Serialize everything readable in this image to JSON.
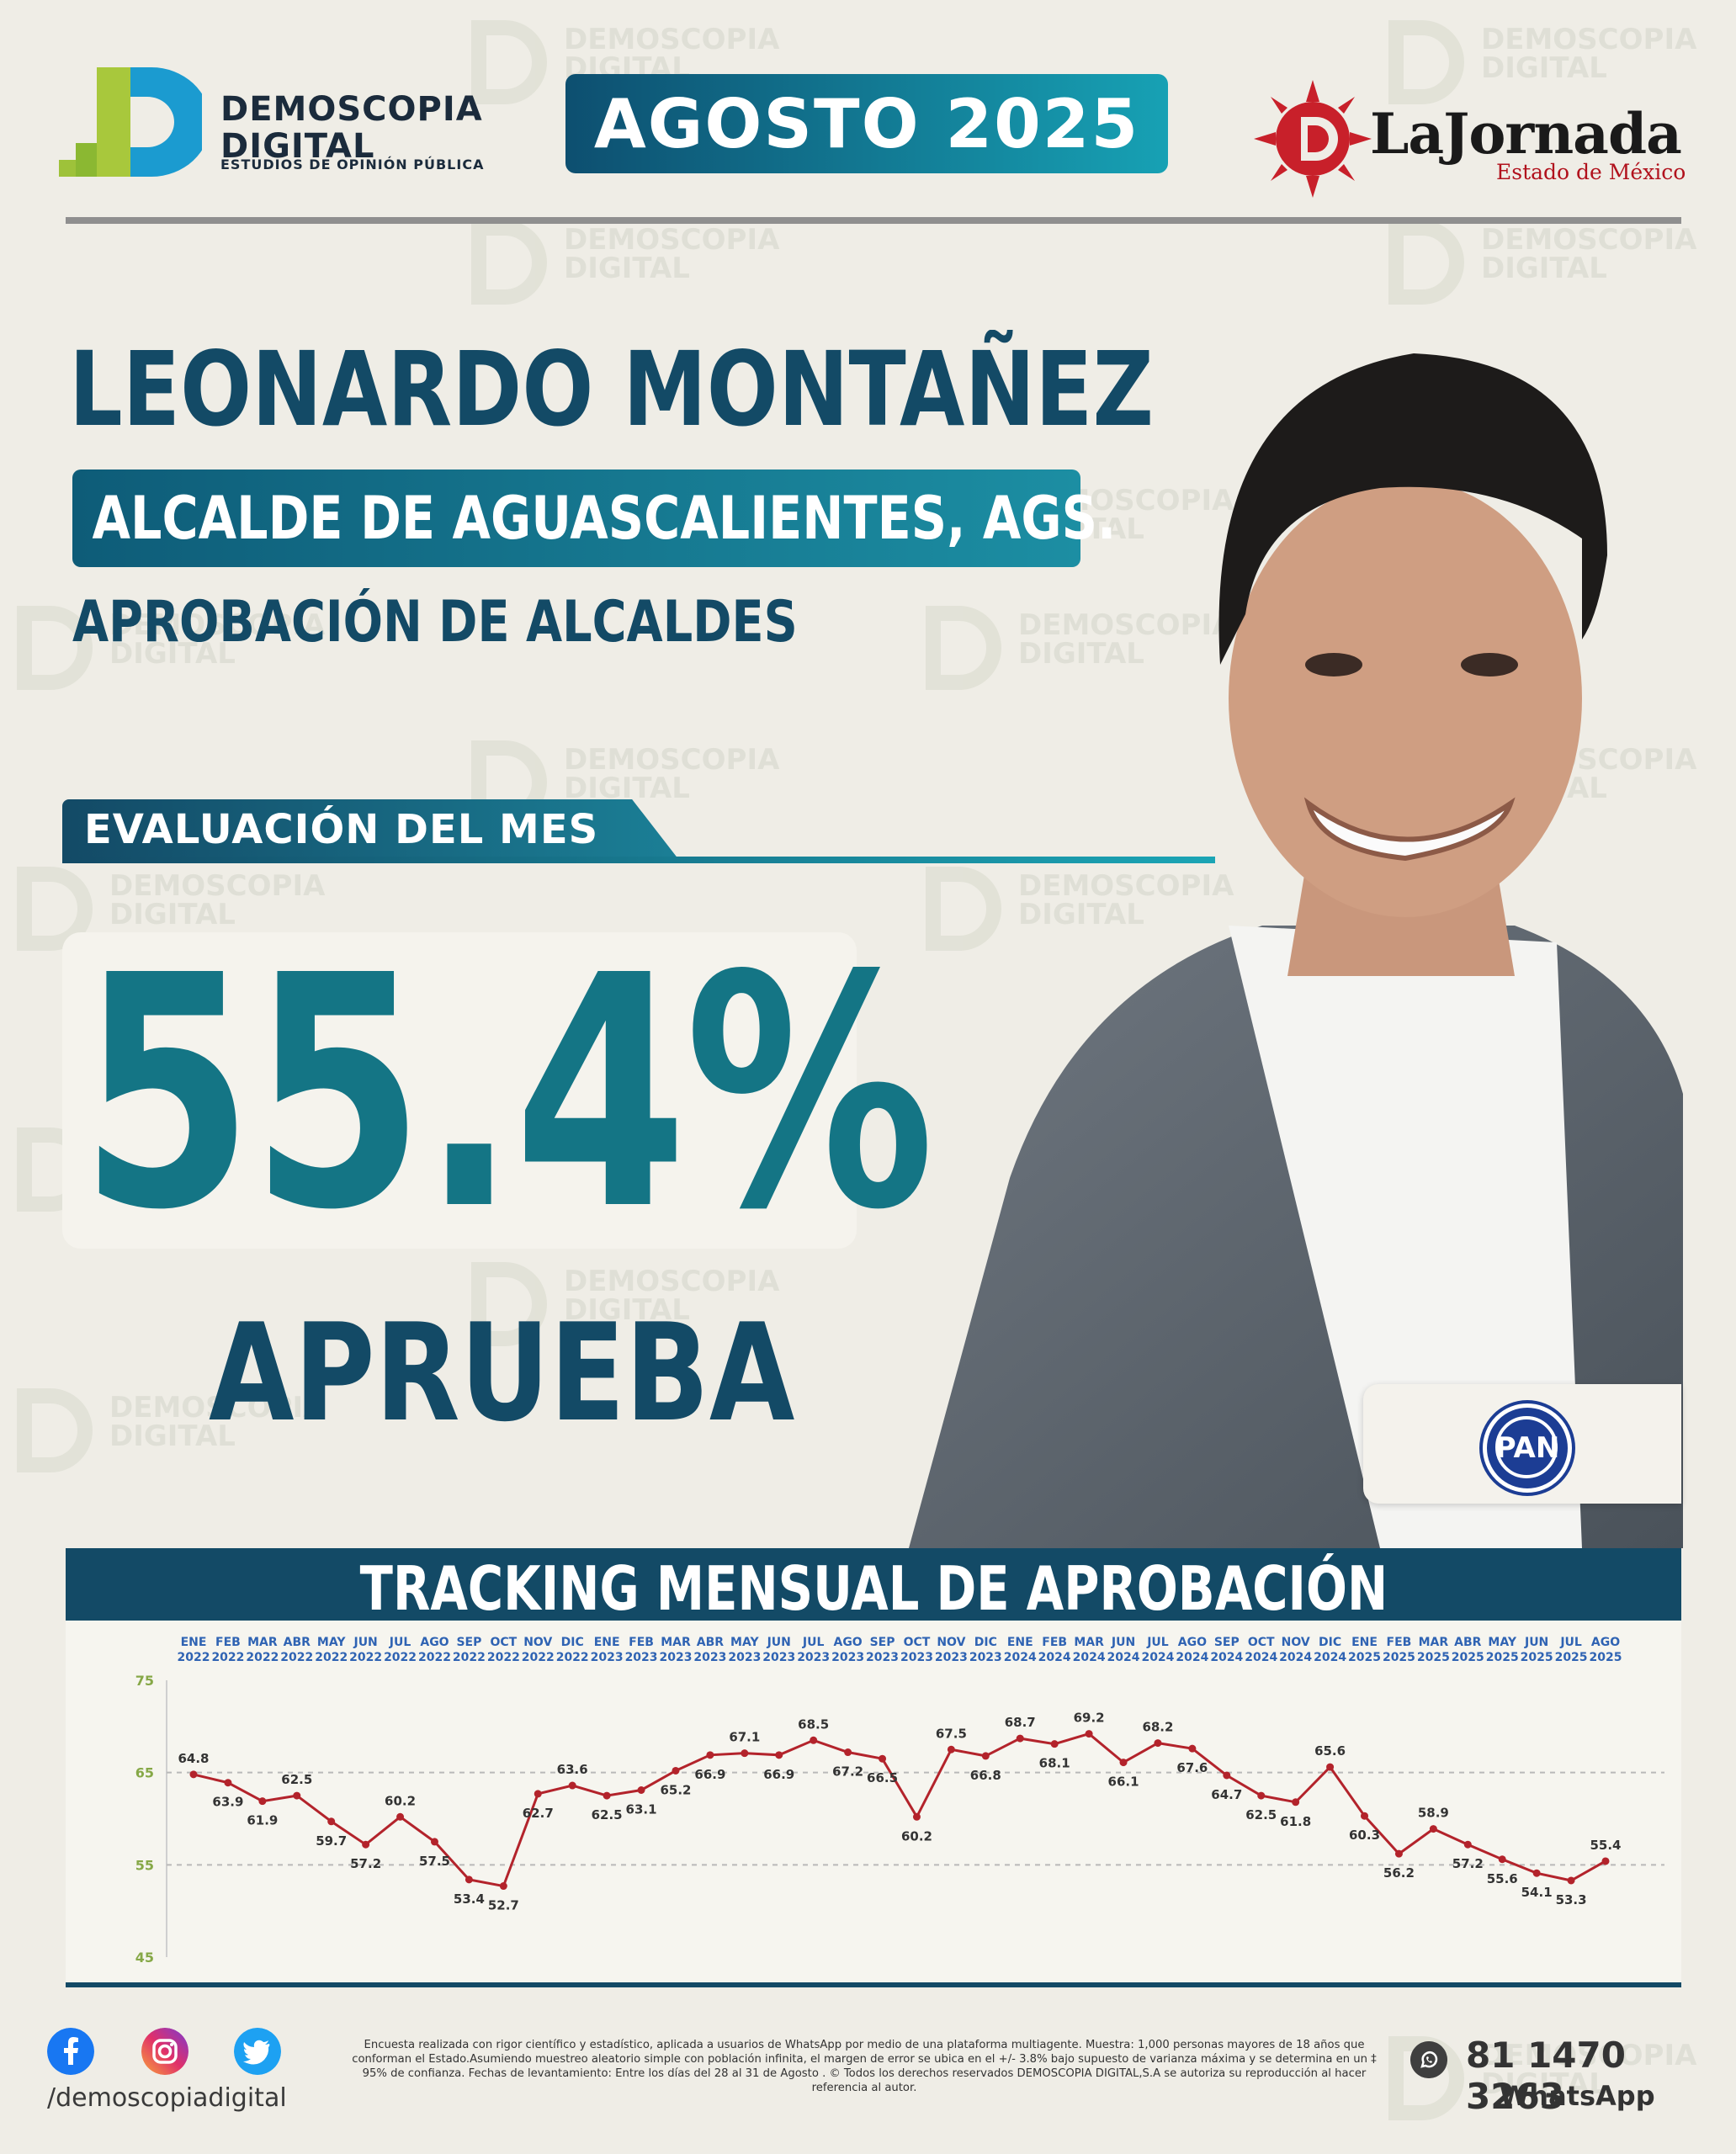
{
  "brand": {
    "name_line1": "DEMOSCOPIA",
    "name_line2": "DIGITAL",
    "subtitle": "ESTUDIOS DE OPINIÓN PÚBLICA"
  },
  "period": "AGOSTO 2025",
  "media": {
    "name": "LaJornada",
    "region": "Estado de México"
  },
  "person": {
    "name": "LEONARDO MONTAÑEZ",
    "office": "ALCALDE DE AGUASCALIENTES, AGS.",
    "category": "APROBACIÓN DE ALCALDES"
  },
  "evaluation": {
    "label": "EVALUACIÓN DEL MES",
    "value": "55.4%",
    "value_label": "APRUEBA"
  },
  "party": {
    "name": "PAN"
  },
  "chart_data": {
    "type": "line",
    "title": "TRACKING MENSUAL DE APROBACIÓN",
    "xlabel": "",
    "ylabel": "",
    "ylim": [
      45,
      75
    ],
    "yticks": [
      75,
      65,
      55,
      45
    ],
    "grid": true,
    "x_month": [
      "ENE",
      "FEB",
      "MAR",
      "ABR",
      "MAY",
      "JUN",
      "JUL",
      "AGO",
      "SEP",
      "OCT",
      "NOV",
      "DIC",
      "ENE",
      "FEB",
      "MAR",
      "ABR",
      "MAY",
      "JUN",
      "JUL",
      "AGO",
      "SEP",
      "OCT",
      "NOV",
      "DIC",
      "ENE",
      "FEB",
      "MAR",
      "JUN",
      "JUL",
      "AGO",
      "SEP",
      "OCT",
      "NOV",
      "DIC",
      "ENE",
      "FEB",
      "MAR",
      "ABR",
      "MAY",
      "JUN",
      "JUL",
      "AGO"
    ],
    "x_year": [
      "2022",
      "2022",
      "2022",
      "2022",
      "2022",
      "2022",
      "2022",
      "2022",
      "2022",
      "2022",
      "2022",
      "2022",
      "2023",
      "2023",
      "2023",
      "2023",
      "2023",
      "2023",
      "2023",
      "2023",
      "2023",
      "2023",
      "2023",
      "2023",
      "2024",
      "2024",
      "2024",
      "2024",
      "2024",
      "2024",
      "2024",
      "2024",
      "2024",
      "2024",
      "2025",
      "2025",
      "2025",
      "2025",
      "2025",
      "2025",
      "2025",
      "2025"
    ],
    "series": [
      {
        "values": [
          64.8,
          63.9,
          61.9,
          62.5,
          59.7,
          57.2,
          60.2,
          57.5,
          53.4,
          52.7,
          62.7,
          63.6,
          62.5,
          63.1,
          65.2,
          66.9,
          67.1,
          66.9,
          68.5,
          67.2,
          66.5,
          60.2,
          67.5,
          66.8,
          68.7,
          68.1,
          69.2,
          66.1,
          68.2,
          67.6,
          64.7,
          62.5,
          61.8,
          65.6,
          60.3,
          56.2,
          58.9,
          57.2,
          55.6,
          54.1,
          53.3,
          55.4
        ]
      }
    ]
  },
  "footer": {
    "social_handle": "/demoscopiadigital",
    "social_icons": [
      "facebook-icon",
      "instagram-icon",
      "twitter-icon"
    ],
    "note": "Encuesta realizada con rigor científico y estadístico, aplicada a usuarios de WhatsApp por medio de una plataforma multiagente. Muestra: 1,000 personas mayores de 18 años que conforman el Estado.Asumiendo muestreo aleatorio simple con población infinita, el margen de error se ubica en el +/- 3.8% bajo supuesto de varianza máxima y se determina en un ‡ 95% de confianza. Fechas de levantamiento: Entre los días del 28 al 31 de Agosto . © Todos los derechos reservados DEMOSCOPIA DIGITAL,S.A se autoriza su reproducción al hacer referencia al autor.",
    "phone": "81 1470 3263",
    "phone_channel": "WhatsApp"
  },
  "colors": {
    "primary": "#134a66",
    "accent": "#17a1b4",
    "line": "#b3232b",
    "pan": "#1c3d94"
  }
}
